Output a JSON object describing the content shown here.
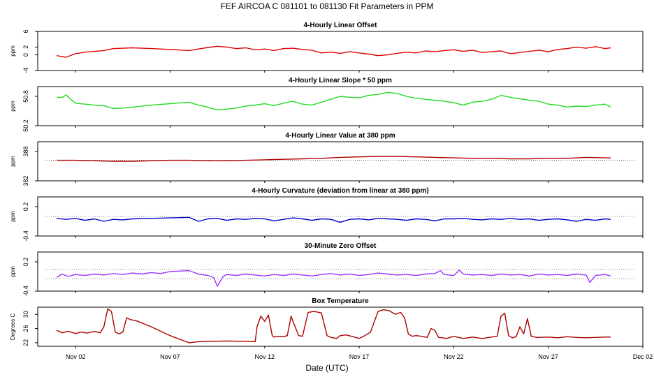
{
  "figure": {
    "title": "FEF   AIRCOA C   081101 to 081130   Fit Parameters in PPM",
    "xlabel": "Date (UTC)"
  },
  "chart_data": [
    {
      "type": "line",
      "title": "4-Hourly Linear Offset",
      "ylabel": "ppm",
      "color": "#e00000",
      "ylim": [
        -4,
        6
      ],
      "yticks": [
        "-4",
        "0",
        "2",
        "6"
      ],
      "ytick_values": [
        -4,
        0,
        2,
        6
      ],
      "reference_lines": [],
      "x": [
        1.0,
        1.5,
        2.0,
        2.5,
        3.0,
        3.5,
        4.0,
        4.5,
        5.0,
        6.0,
        7.0,
        8.0,
        8.5,
        9.0,
        9.5,
        10.0,
        10.5,
        11.0,
        11.5,
        12.0,
        12.5,
        13.0,
        13.5,
        14.0,
        14.5,
        15.0,
        15.5,
        16.0,
        16.5,
        17.0,
        17.5,
        18.0,
        18.5,
        19.0,
        19.5,
        20.0,
        20.5,
        21.0,
        21.5,
        22.0,
        22.5,
        23.0,
        23.5,
        24.0,
        24.5,
        25.0,
        25.5,
        26.0,
        26.5,
        27.0,
        27.5,
        28.0,
        28.5,
        29.0,
        29.5,
        30.0,
        30.3
      ],
      "y": [
        -0.2,
        -0.6,
        0.3,
        0.7,
        0.9,
        1.1,
        1.6,
        1.7,
        1.8,
        1.6,
        1.4,
        1.1,
        1.5,
        1.9,
        2.2,
        2.0,
        1.6,
        1.8,
        1.3,
        1.5,
        1.1,
        1.6,
        1.7,
        1.4,
        1.2,
        0.5,
        0.7,
        0.4,
        0.8,
        0.5,
        0.2,
        -0.2,
        0.0,
        0.4,
        0.7,
        0.5,
        1.0,
        0.8,
        1.1,
        1.3,
        0.9,
        1.2,
        0.6,
        0.8,
        1.0,
        0.3,
        0.6,
        0.9,
        1.2,
        0.8,
        1.4,
        1.6,
        2.0,
        1.7,
        2.1,
        1.6,
        1.8
      ]
    },
    {
      "type": "line",
      "title": "4-Hourly Linear Slope * 50 ppm",
      "ylabel": "ppm",
      "color": "#22dd22",
      "ylim": [
        50.2,
        51.0
      ],
      "yticks": [
        "50.2",
        "50.8"
      ],
      "ytick_values": [
        50.2,
        50.8
      ],
      "reference_lines": [],
      "x": [
        1.0,
        1.3,
        1.5,
        1.8,
        2.0,
        2.5,
        3.0,
        3.5,
        4.0,
        4.5,
        5.0,
        6.0,
        7.0,
        8.0,
        8.5,
        9.0,
        9.5,
        10.0,
        10.5,
        11.0,
        11.5,
        12.0,
        12.5,
        13.0,
        13.5,
        14.0,
        14.5,
        15.0,
        15.5,
        16.0,
        16.5,
        17.0,
        17.5,
        18.0,
        18.5,
        19.0,
        19.5,
        20.0,
        20.5,
        21.0,
        21.5,
        22.0,
        22.5,
        23.0,
        23.5,
        24.0,
        24.5,
        25.0,
        25.5,
        26.0,
        26.5,
        27.0,
        27.5,
        28.0,
        28.5,
        29.0,
        29.5,
        30.0,
        30.3
      ],
      "y": [
        50.78,
        50.78,
        50.83,
        50.72,
        50.66,
        50.64,
        50.62,
        50.61,
        50.55,
        50.56,
        50.58,
        50.62,
        50.65,
        50.68,
        50.62,
        50.58,
        50.52,
        50.54,
        50.56,
        50.6,
        50.62,
        50.65,
        50.61,
        50.66,
        50.7,
        50.64,
        50.62,
        50.68,
        50.74,
        50.8,
        50.78,
        50.77,
        50.82,
        50.84,
        50.88,
        50.86,
        50.8,
        50.76,
        50.74,
        50.72,
        50.7,
        50.67,
        50.62,
        50.68,
        50.7,
        50.74,
        50.82,
        50.78,
        50.75,
        50.72,
        50.7,
        50.64,
        50.62,
        50.58,
        50.6,
        50.59,
        50.62,
        50.64,
        50.58
      ]
    },
    {
      "type": "line",
      "title": "4-Hourly Linear Value at 380 ppm",
      "ylabel": "ppm",
      "color": "#b00000",
      "ylim": [
        382,
        390
      ],
      "yticks": [
        "382",
        "388"
      ],
      "ytick_values": [
        382,
        388
      ],
      "reference_lines": [
        386.2
      ],
      "x": [
        1.0,
        2.0,
        3.0,
        4.0,
        5.0,
        6.0,
        7.0,
        8.0,
        9.0,
        10.0,
        11.0,
        12.0,
        13.0,
        14.0,
        15.0,
        16.0,
        17.0,
        18.0,
        19.0,
        20.0,
        21.0,
        22.0,
        23.0,
        24.0,
        25.0,
        26.0,
        27.0,
        28.0,
        29.0,
        30.0,
        30.3
      ],
      "y": [
        386.2,
        386.2,
        386.1,
        386.0,
        386.0,
        386.1,
        386.2,
        386.2,
        386.1,
        386.1,
        386.2,
        386.3,
        386.4,
        386.5,
        386.6,
        386.8,
        386.9,
        387.0,
        387.0,
        386.9,
        386.8,
        386.7,
        386.6,
        386.6,
        386.5,
        386.5,
        386.6,
        386.6,
        386.8,
        386.7,
        386.7
      ]
    },
    {
      "type": "line",
      "title": "4-Hourly Curvature (deviation from linear at 380 ppm)",
      "ylabel": "ppm",
      "color": "#0000cc",
      "ylim": [
        -0.4,
        0.4
      ],
      "yticks": [
        "-0.4",
        "0.2"
      ],
      "ytick_values": [
        -0.4,
        0.2
      ],
      "reference_lines": [
        0.0
      ],
      "x": [
        1.0,
        1.5,
        2.0,
        2.5,
        3.0,
        3.5,
        4.0,
        4.5,
        5.0,
        6.0,
        7.0,
        8.0,
        8.5,
        9.0,
        9.5,
        10.0,
        10.5,
        11.0,
        11.5,
        12.0,
        12.5,
        13.0,
        13.5,
        14.0,
        14.5,
        15.0,
        15.5,
        16.0,
        16.5,
        17.0,
        17.5,
        18.0,
        18.5,
        19.0,
        19.5,
        20.0,
        20.5,
        21.0,
        21.5,
        22.0,
        22.5,
        23.0,
        23.5,
        24.0,
        24.5,
        25.0,
        25.5,
        26.0,
        26.5,
        27.0,
        27.5,
        28.0,
        28.5,
        29.0,
        29.5,
        30.0,
        30.3
      ],
      "y": [
        -0.04,
        -0.06,
        -0.04,
        -0.08,
        -0.05,
        -0.1,
        -0.06,
        -0.07,
        -0.05,
        -0.04,
        -0.03,
        -0.02,
        -0.1,
        -0.05,
        -0.04,
        -0.08,
        -0.05,
        -0.06,
        -0.04,
        -0.05,
        -0.09,
        -0.06,
        -0.03,
        -0.05,
        -0.08,
        -0.05,
        -0.06,
        -0.12,
        -0.06,
        -0.05,
        -0.07,
        -0.04,
        -0.05,
        -0.06,
        -0.08,
        -0.05,
        -0.06,
        -0.09,
        -0.05,
        -0.05,
        -0.04,
        -0.06,
        -0.07,
        -0.05,
        -0.06,
        -0.04,
        -0.06,
        -0.05,
        -0.08,
        -0.06,
        -0.05,
        -0.07,
        -0.1,
        -0.06,
        -0.08,
        -0.05,
        -0.06
      ]
    },
    {
      "type": "line",
      "title": "30-Minute Zero Offset",
      "ylabel": "ppm",
      "color": "#9933ff",
      "ylim": [
        -0.4,
        0.4
      ],
      "yticks": [
        "-0.4",
        "0.2"
      ],
      "ytick_values": [
        -0.4,
        0.2
      ],
      "reference_lines": [
        0.05,
        -0.15
      ],
      "x": [
        1.0,
        1.3,
        1.6,
        2.0,
        2.5,
        3.0,
        3.5,
        4.0,
        4.5,
        5.0,
        5.5,
        6.0,
        6.5,
        7.0,
        7.5,
        8.0,
        8.5,
        9.0,
        9.3,
        9.5,
        9.8,
        10.0,
        10.5,
        11.0,
        11.5,
        12.0,
        12.5,
        13.0,
        13.5,
        14.0,
        14.5,
        15.0,
        15.5,
        16.0,
        16.5,
        17.0,
        17.5,
        18.0,
        18.5,
        19.0,
        19.5,
        20.0,
        20.5,
        21.0,
        21.3,
        21.5,
        22.0,
        22.3,
        22.5,
        23.0,
        23.5,
        24.0,
        24.5,
        25.0,
        25.5,
        26.0,
        26.5,
        27.0,
        27.5,
        28.0,
        28.5,
        29.0,
        29.2,
        29.5,
        30.0,
        30.3
      ],
      "y": [
        -0.12,
        -0.05,
        -0.1,
        -0.06,
        -0.08,
        -0.05,
        -0.07,
        -0.04,
        -0.06,
        -0.03,
        -0.05,
        -0.02,
        -0.04,
        0.0,
        0.01,
        0.02,
        -0.05,
        -0.08,
        -0.12,
        -0.3,
        -0.1,
        -0.06,
        -0.08,
        -0.05,
        -0.07,
        -0.09,
        -0.06,
        -0.08,
        -0.05,
        -0.07,
        -0.09,
        -0.06,
        -0.04,
        -0.07,
        -0.05,
        -0.08,
        -0.06,
        -0.03,
        -0.05,
        -0.07,
        -0.06,
        -0.08,
        -0.05,
        -0.04,
        0.02,
        -0.06,
        -0.08,
        0.03,
        -0.05,
        -0.07,
        -0.06,
        -0.08,
        -0.05,
        -0.07,
        -0.06,
        -0.09,
        -0.05,
        -0.07,
        -0.06,
        -0.08,
        -0.05,
        -0.07,
        -0.22,
        -0.08,
        -0.06,
        -0.09
      ]
    },
    {
      "type": "line",
      "title": "Box Temperature",
      "ylabel": "Degrees C",
      "color": "#aa0000",
      "ylim": [
        21,
        32
      ],
      "yticks": [
        "22",
        "26",
        "30"
      ],
      "ytick_values": [
        22,
        26,
        30
      ],
      "reference_lines": [],
      "x": [
        1.0,
        1.3,
        1.6,
        2.0,
        2.3,
        2.6,
        3.0,
        3.3,
        3.5,
        3.7,
        3.9,
        4.1,
        4.3,
        4.5,
        4.7,
        4.9,
        5.2,
        6.0,
        7.0,
        8.0,
        8.5,
        9.0,
        10.0,
        11.0,
        11.5,
        11.6,
        11.8,
        12.0,
        12.2,
        12.4,
        12.5,
        12.8,
        13.0,
        13.2,
        13.4,
        13.5,
        13.8,
        14.0,
        14.3,
        14.6,
        15.0,
        15.3,
        15.5,
        15.8,
        16.0,
        16.3,
        16.6,
        17.0,
        17.3,
        17.6,
        18.0,
        18.3,
        18.6,
        18.9,
        19.2,
        19.4,
        19.6,
        19.8,
        20.0,
        20.3,
        20.6,
        20.8,
        21.0,
        21.2,
        21.4,
        21.6,
        21.8,
        22.0,
        22.5,
        23.0,
        23.5,
        24.0,
        24.3,
        24.5,
        24.7,
        24.9,
        25.1,
        25.3,
        25.5,
        25.7,
        25.9,
        26.1,
        26.4,
        27.0,
        27.5,
        28.0,
        28.5,
        29.0,
        29.5,
        30.0,
        30.3
      ],
      "y": [
        25.5,
        24.8,
        25.2,
        24.6,
        25.0,
        24.7,
        25.2,
        24.8,
        26.5,
        31.5,
        30.8,
        25.0,
        24.5,
        25.0,
        29.0,
        28.5,
        28.2,
        26.5,
        24.0,
        22.0,
        22.3,
        22.4,
        22.5,
        22.4,
        22.3,
        26.5,
        29.5,
        28.0,
        29.8,
        24.0,
        23.6,
        23.8,
        23.7,
        24.0,
        29.5,
        28.0,
        24.0,
        23.8,
        30.5,
        30.8,
        30.4,
        24.0,
        23.5,
        23.2,
        24.0,
        24.2,
        23.8,
        23.2,
        24.0,
        25.0,
        30.8,
        31.3,
        31.0,
        30.0,
        30.5,
        29.0,
        24.5,
        23.8,
        24.0,
        23.8,
        23.5,
        26.0,
        25.5,
        23.5,
        23.4,
        23.2,
        23.5,
        23.8,
        23.2,
        23.6,
        23.2,
        23.6,
        23.8,
        29.5,
        30.3,
        24.0,
        23.4,
        23.7,
        26.5,
        24.5,
        28.8,
        23.8,
        23.5,
        23.6,
        23.4,
        23.7,
        23.5,
        23.4,
        23.5,
        23.6,
        23.6
      ]
    }
  ],
  "x_axis": {
    "range": [
      0.0,
      32.0
    ],
    "ticks": [
      {
        "x": 2,
        "label": "Nov 02"
      },
      {
        "x": 7,
        "label": "Nov 07"
      },
      {
        "x": 12,
        "label": "Nov 12"
      },
      {
        "x": 17,
        "label": "Nov 17"
      },
      {
        "x": 22,
        "label": "Nov 22"
      },
      {
        "x": 27,
        "label": "Nov 27"
      },
      {
        "x": 32,
        "label": "Dec 02"
      }
    ]
  }
}
